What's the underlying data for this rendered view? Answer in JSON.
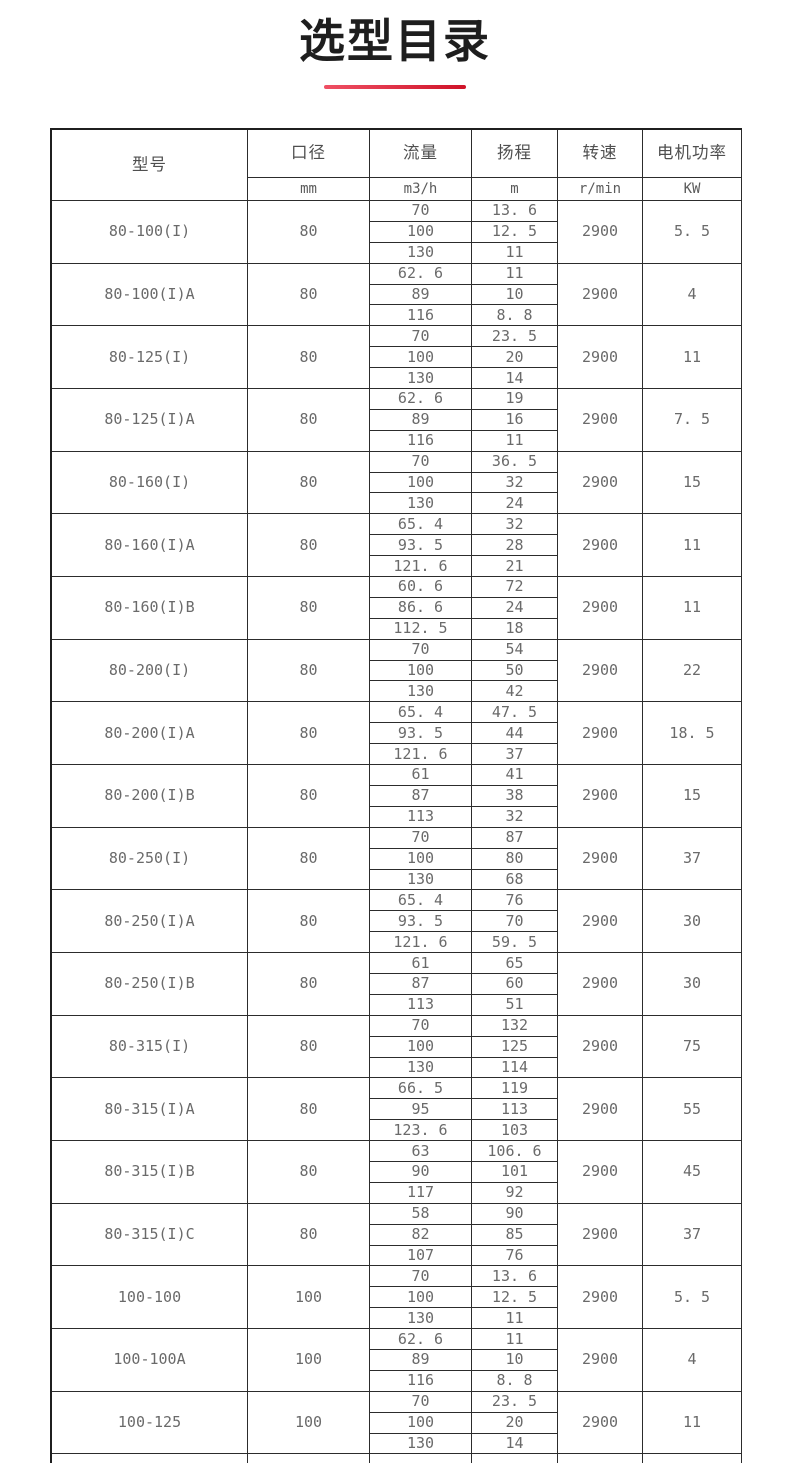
{
  "page": {
    "title": "选型目录"
  },
  "theme": {
    "accent_red": "#cf1228",
    "accent_red_light": "#ef5064",
    "border_dark": "#2c2c2c",
    "text_gray": "#6a6a6a",
    "title_color": "#1e1e1e"
  },
  "table": {
    "headers": [
      {
        "label": "型号",
        "unit": null
      },
      {
        "label": "口径",
        "unit": "mm"
      },
      {
        "label": "流量",
        "unit": "m3/h"
      },
      {
        "label": "扬程",
        "unit": "m"
      },
      {
        "label": "转速",
        "unit": "r/min"
      },
      {
        "label": "电机功率",
        "unit": "KW"
      }
    ],
    "rows": [
      {
        "model": "80-100(I)",
        "bore": "80",
        "speed": "2900",
        "power": "5. 5",
        "points": [
          {
            "flow": "70",
            "head": "13. 6"
          },
          {
            "flow": "100",
            "head": "12. 5"
          },
          {
            "flow": "130",
            "head": "11"
          }
        ]
      },
      {
        "model": "80-100(I)A",
        "bore": "80",
        "speed": "2900",
        "power": "4",
        "points": [
          {
            "flow": "62. 6",
            "head": "11"
          },
          {
            "flow": "89",
            "head": "10"
          },
          {
            "flow": "116",
            "head": "8. 8"
          }
        ]
      },
      {
        "model": "80-125(I)",
        "bore": "80",
        "speed": "2900",
        "power": "11",
        "points": [
          {
            "flow": "70",
            "head": "23. 5"
          },
          {
            "flow": "100",
            "head": "20"
          },
          {
            "flow": "130",
            "head": "14"
          }
        ]
      },
      {
        "model": "80-125(I)A",
        "bore": "80",
        "speed": "2900",
        "power": "7. 5",
        "points": [
          {
            "flow": "62. 6",
            "head": "19"
          },
          {
            "flow": "89",
            "head": "16"
          },
          {
            "flow": "116",
            "head": "11"
          }
        ]
      },
      {
        "model": "80-160(I)",
        "bore": "80",
        "speed": "2900",
        "power": "15",
        "points": [
          {
            "flow": "70",
            "head": "36. 5"
          },
          {
            "flow": "100",
            "head": "32"
          },
          {
            "flow": "130",
            "head": "24"
          }
        ]
      },
      {
        "model": "80-160(I)A",
        "bore": "80",
        "speed": "2900",
        "power": "11",
        "points": [
          {
            "flow": "65. 4",
            "head": "32"
          },
          {
            "flow": "93. 5",
            "head": "28"
          },
          {
            "flow": "121. 6",
            "head": "21"
          }
        ]
      },
      {
        "model": "80-160(I)B",
        "bore": "80",
        "speed": "2900",
        "power": "11",
        "points": [
          {
            "flow": "60. 6",
            "head": "72"
          },
          {
            "flow": "86. 6",
            "head": "24"
          },
          {
            "flow": "112. 5",
            "head": "18"
          }
        ]
      },
      {
        "model": "80-200(I)",
        "bore": "80",
        "speed": "2900",
        "power": "22",
        "points": [
          {
            "flow": "70",
            "head": "54"
          },
          {
            "flow": "100",
            "head": "50"
          },
          {
            "flow": "130",
            "head": "42"
          }
        ]
      },
      {
        "model": "80-200(I)A",
        "bore": "80",
        "speed": "2900",
        "power": "18. 5",
        "points": [
          {
            "flow": "65. 4",
            "head": "47. 5"
          },
          {
            "flow": "93. 5",
            "head": "44"
          },
          {
            "flow": "121. 6",
            "head": "37"
          }
        ]
      },
      {
        "model": "80-200(I)B",
        "bore": "80",
        "speed": "2900",
        "power": "15",
        "points": [
          {
            "flow": "61",
            "head": "41"
          },
          {
            "flow": "87",
            "head": "38"
          },
          {
            "flow": "113",
            "head": "32"
          }
        ]
      },
      {
        "model": "80-250(I)",
        "bore": "80",
        "speed": "2900",
        "power": "37",
        "points": [
          {
            "flow": "70",
            "head": "87"
          },
          {
            "flow": "100",
            "head": "80"
          },
          {
            "flow": "130",
            "head": "68"
          }
        ]
      },
      {
        "model": "80-250(I)A",
        "bore": "80",
        "speed": "2900",
        "power": "30",
        "points": [
          {
            "flow": "65. 4",
            "head": "76"
          },
          {
            "flow": "93. 5",
            "head": "70"
          },
          {
            "flow": "121. 6",
            "head": "59. 5"
          }
        ]
      },
      {
        "model": "80-250(I)B",
        "bore": "80",
        "speed": "2900",
        "power": "30",
        "points": [
          {
            "flow": "61",
            "head": "65"
          },
          {
            "flow": "87",
            "head": "60"
          },
          {
            "flow": "113",
            "head": "51"
          }
        ]
      },
      {
        "model": "80-315(I)",
        "bore": "80",
        "speed": "2900",
        "power": "75",
        "points": [
          {
            "flow": "70",
            "head": "132"
          },
          {
            "flow": "100",
            "head": "125"
          },
          {
            "flow": "130",
            "head": "114"
          }
        ]
      },
      {
        "model": "80-315(I)A",
        "bore": "80",
        "speed": "2900",
        "power": "55",
        "points": [
          {
            "flow": "66. 5",
            "head": "119"
          },
          {
            "flow": "95",
            "head": "113"
          },
          {
            "flow": "123. 6",
            "head": "103"
          }
        ]
      },
      {
        "model": "80-315(I)B",
        "bore": "80",
        "speed": "2900",
        "power": "45",
        "points": [
          {
            "flow": "63",
            "head": "106. 6"
          },
          {
            "flow": "90",
            "head": "101"
          },
          {
            "flow": "117",
            "head": "92"
          }
        ]
      },
      {
        "model": "80-315(I)C",
        "bore": "80",
        "speed": "2900",
        "power": "37",
        "points": [
          {
            "flow": "58",
            "head": "90"
          },
          {
            "flow": "82",
            "head": "85"
          },
          {
            "flow": "107",
            "head": "76"
          }
        ]
      },
      {
        "model": "100-100",
        "bore": "100",
        "speed": "2900",
        "power": "5. 5",
        "points": [
          {
            "flow": "70",
            "head": "13. 6"
          },
          {
            "flow": "100",
            "head": "12. 5"
          },
          {
            "flow": "130",
            "head": "11"
          }
        ]
      },
      {
        "model": "100-100A",
        "bore": "100",
        "speed": "2900",
        "power": "4",
        "points": [
          {
            "flow": "62. 6",
            "head": "11"
          },
          {
            "flow": "89",
            "head": "10"
          },
          {
            "flow": "116",
            "head": "8. 8"
          }
        ]
      },
      {
        "model": "100-125",
        "bore": "100",
        "speed": "2900",
        "power": "11",
        "points": [
          {
            "flow": "70",
            "head": "23. 5"
          },
          {
            "flow": "100",
            "head": "20"
          },
          {
            "flow": "130",
            "head": "14"
          }
        ]
      }
    ]
  }
}
